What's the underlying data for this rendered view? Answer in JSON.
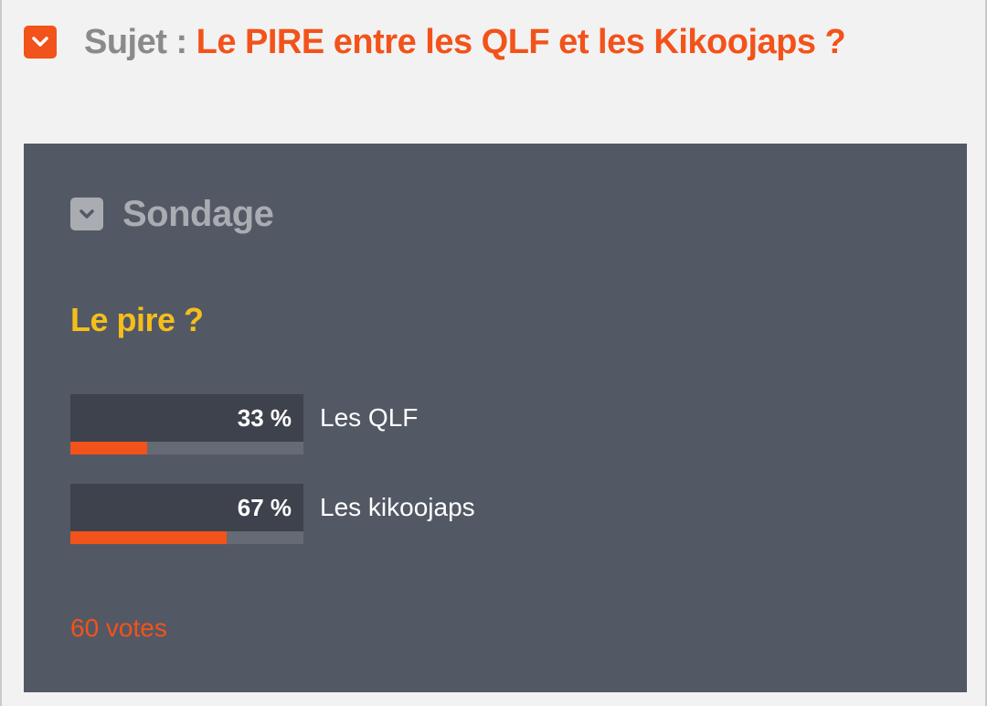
{
  "colors": {
    "accent": "#f2531a",
    "question": "#f5be1a",
    "card_background": "#535865",
    "page_background": "#f2f2f2"
  },
  "topic": {
    "toggle_icon": "chevron-down-icon",
    "prefix": "Sujet :",
    "title": "Le PIRE entre les QLF et les Kikoojaps ?"
  },
  "poll": {
    "toggle_icon": "chevron-down-icon",
    "heading": "Sondage",
    "question": "Le pire ?",
    "options": [
      {
        "percent_label": "33 %",
        "label": "Les QLF",
        "fraction": 0.33
      },
      {
        "percent_label": "67 %",
        "label": "Les kikoojaps",
        "fraction": 0.67
      }
    ],
    "votes": "60 votes"
  }
}
